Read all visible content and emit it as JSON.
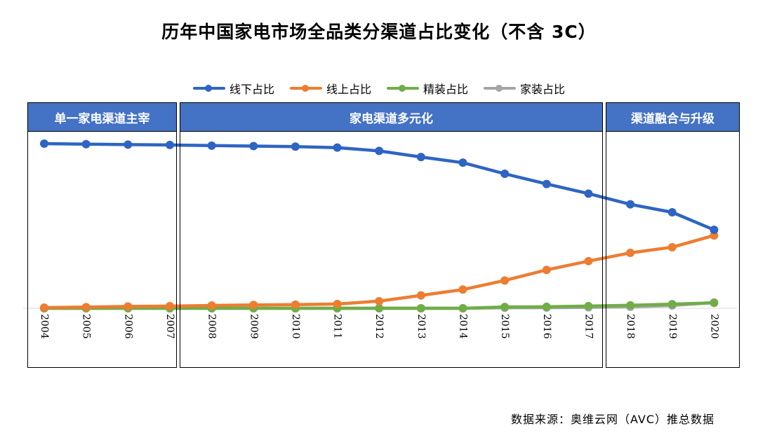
{
  "chart_data": {
    "type": "line",
    "title": "历年中国家电市场全品类分渠道占比变化（不含 3C）",
    "categories": [
      "2004",
      "2005",
      "2006",
      "2007",
      "2008",
      "2009",
      "2010",
      "2011",
      "2012",
      "2013",
      "2014",
      "2015",
      "2016",
      "2017",
      "2018",
      "2019",
      "2020"
    ],
    "series": [
      {
        "name": "线下占比",
        "color": "#2e65c2",
        "values": [
          99.5,
          99.2,
          98.9,
          98.7,
          98.3,
          98.0,
          97.7,
          97.1,
          95.1,
          91.4,
          88.0,
          81.3,
          75.1,
          69.3,
          62.8,
          58.0,
          47.4
        ]
      },
      {
        "name": "线上占比",
        "color": "#ed7d31",
        "values": [
          0.4,
          0.7,
          1.1,
          1.3,
          1.7,
          2.0,
          2.2,
          2.6,
          4.3,
          7.8,
          11.3,
          16.8,
          23.2,
          28.5,
          33.5,
          36.9,
          44.0
        ]
      },
      {
        "name": "精装占比",
        "color": "#70ad47",
        "values": [
          0,
          0,
          0,
          0,
          0,
          0,
          0,
          0,
          0,
          0,
          0,
          0.8,
          0.9,
          1.3,
          1.8,
          2.5,
          3.3
        ]
      },
      {
        "name": "家装占比",
        "color": "#a5a5a5",
        "values": [
          0,
          0,
          0,
          0,
          0,
          0,
          0,
          0,
          0,
          0,
          0,
          0.3,
          0.4,
          0.6,
          0.9,
          1.7,
          3.5
        ]
      }
    ],
    "ylim": [
      0,
      100
    ],
    "grid": false,
    "legend": "top",
    "bands": [
      {
        "label": "单一家电渠道主宰",
        "from": "2004",
        "to": "2007"
      },
      {
        "label": "家电渠道多元化",
        "from": "2008",
        "to": "2017"
      },
      {
        "label": "渠道融合与升级",
        "from": "2018",
        "to": "2020"
      }
    ]
  },
  "source": "数据来源：奥维云网（AVC）推总数据"
}
